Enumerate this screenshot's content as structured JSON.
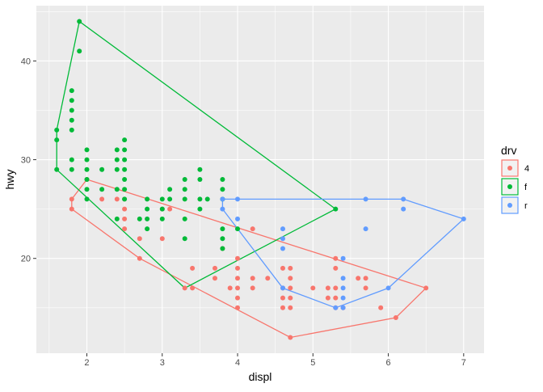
{
  "chart_data": {
    "type": "scatter",
    "title": "",
    "xlabel": "displ",
    "ylabel": "hwy",
    "xlim": [
      1.33,
      7.27
    ],
    "ylim": [
      10.4,
      45.6
    ],
    "x_ticks": [
      2,
      3,
      4,
      5,
      6,
      7
    ],
    "y_ticks": [
      20,
      30,
      40
    ],
    "grid": true,
    "legend": {
      "title": "drv",
      "position": "right",
      "entries": [
        {
          "label": "4",
          "color": "#F8766D"
        },
        {
          "label": "f",
          "color": "#00BA38"
        },
        {
          "label": "r",
          "color": "#619CFF"
        }
      ]
    },
    "colors": {
      "panel": "#EBEBEB",
      "grid": "#FFFFFF",
      "axis_text": "#4D4D4D"
    },
    "series": [
      {
        "name": "4",
        "color": "#F8766D",
        "hull": [
          [
            1.8,
            25
          ],
          [
            2.7,
            20
          ],
          [
            4.7,
            12
          ],
          [
            6.1,
            14
          ],
          [
            6.5,
            17
          ],
          [
            2.0,
            28
          ],
          [
            1.8,
            26
          ]
        ],
        "points": [
          [
            1.8,
            26
          ],
          [
            1.8,
            25
          ],
          [
            2.0,
            28
          ],
          [
            2.2,
            26
          ],
          [
            2.4,
            26
          ],
          [
            2.5,
            26
          ],
          [
            2.5,
            25
          ],
          [
            2.5,
            24
          ],
          [
            2.5,
            23
          ],
          [
            2.7,
            22
          ],
          [
            2.7,
            20
          ],
          [
            3.0,
            22
          ],
          [
            3.0,
            25
          ],
          [
            3.1,
            25
          ],
          [
            3.3,
            17
          ],
          [
            3.4,
            17
          ],
          [
            3.4,
            19
          ],
          [
            3.7,
            19
          ],
          [
            3.7,
            18
          ],
          [
            3.8,
            21
          ],
          [
            3.9,
            17
          ],
          [
            4.0,
            17
          ],
          [
            4.0,
            19
          ],
          [
            4.0,
            20
          ],
          [
            4.0,
            18
          ],
          [
            4.0,
            16
          ],
          [
            4.0,
            15
          ],
          [
            4.2,
            23
          ],
          [
            4.2,
            18
          ],
          [
            4.2,
            17
          ],
          [
            4.4,
            18
          ],
          [
            4.6,
            19
          ],
          [
            4.6,
            17
          ],
          [
            4.6,
            16
          ],
          [
            4.6,
            15
          ],
          [
            4.7,
            19
          ],
          [
            4.7,
            18
          ],
          [
            4.7,
            17
          ],
          [
            4.7,
            16
          ],
          [
            4.7,
            15
          ],
          [
            4.7,
            12
          ],
          [
            5.0,
            17
          ],
          [
            5.2,
            17
          ],
          [
            5.2,
            16
          ],
          [
            5.3,
            17
          ],
          [
            5.3,
            16
          ],
          [
            5.3,
            15
          ],
          [
            5.3,
            19
          ],
          [
            5.3,
            20
          ],
          [
            5.4,
            15
          ],
          [
            5.6,
            18
          ],
          [
            5.7,
            18
          ],
          [
            5.7,
            17
          ],
          [
            5.9,
            15
          ],
          [
            6.1,
            14
          ],
          [
            6.5,
            17
          ]
        ]
      },
      {
        "name": "f",
        "color": "#00BA38",
        "hull": [
          [
            1.6,
            29
          ],
          [
            3.3,
            17
          ],
          [
            5.3,
            25
          ],
          [
            1.9,
            44
          ],
          [
            1.6,
            33
          ],
          [
            1.6,
            32
          ]
        ],
        "points": [
          [
            1.6,
            33
          ],
          [
            1.6,
            32
          ],
          [
            1.6,
            29
          ],
          [
            1.8,
            37
          ],
          [
            1.8,
            36
          ],
          [
            1.8,
            35
          ],
          [
            1.8,
            34
          ],
          [
            1.8,
            33
          ],
          [
            1.8,
            30
          ],
          [
            1.8,
            29
          ],
          [
            1.9,
            44
          ],
          [
            1.9,
            41
          ],
          [
            2.0,
            31
          ],
          [
            2.0,
            30
          ],
          [
            2.0,
            29
          ],
          [
            2.0,
            28
          ],
          [
            2.0,
            27
          ],
          [
            2.0,
            26
          ],
          [
            2.2,
            29
          ],
          [
            2.2,
            27
          ],
          [
            2.4,
            31
          ],
          [
            2.4,
            30
          ],
          [
            2.4,
            29
          ],
          [
            2.4,
            27
          ],
          [
            2.4,
            24
          ],
          [
            2.5,
            32
          ],
          [
            2.5,
            31
          ],
          [
            2.5,
            30
          ],
          [
            2.5,
            29
          ],
          [
            2.5,
            28
          ],
          [
            2.5,
            27
          ],
          [
            2.5,
            26
          ],
          [
            2.7,
            24
          ],
          [
            2.8,
            26
          ],
          [
            2.8,
            24
          ],
          [
            2.8,
            23
          ],
          [
            2.8,
            25
          ],
          [
            3.0,
            26
          ],
          [
            3.0,
            24
          ],
          [
            3.0,
            25
          ],
          [
            3.1,
            26
          ],
          [
            3.1,
            27
          ],
          [
            3.3,
            28
          ],
          [
            3.3,
            27
          ],
          [
            3.3,
            26
          ],
          [
            3.3,
            24
          ],
          [
            3.3,
            22
          ],
          [
            3.5,
            29
          ],
          [
            3.5,
            28
          ],
          [
            3.5,
            26
          ],
          [
            3.5,
            25
          ],
          [
            3.6,
            26
          ],
          [
            3.8,
            28
          ],
          [
            3.8,
            27
          ],
          [
            3.8,
            26
          ],
          [
            3.8,
            23
          ],
          [
            3.8,
            22
          ],
          [
            3.8,
            21
          ],
          [
            4.0,
            23
          ],
          [
            5.3,
            25
          ]
        ]
      },
      {
        "name": "r",
        "color": "#619CFF",
        "hull": [
          [
            3.8,
            25
          ],
          [
            4.6,
            17
          ],
          [
            5.3,
            15
          ],
          [
            6.0,
            17
          ],
          [
            7.0,
            24
          ],
          [
            6.2,
            26
          ],
          [
            3.8,
            26
          ]
        ],
        "points": [
          [
            3.8,
            26
          ],
          [
            3.8,
            25
          ],
          [
            4.0,
            26
          ],
          [
            4.0,
            24
          ],
          [
            4.6,
            23
          ],
          [
            4.6,
            22
          ],
          [
            4.6,
            21
          ],
          [
            4.6,
            17
          ],
          [
            5.3,
            15
          ],
          [
            5.4,
            20
          ],
          [
            5.4,
            18
          ],
          [
            5.4,
            17
          ],
          [
            5.4,
            16
          ],
          [
            5.4,
            15
          ],
          [
            5.7,
            26
          ],
          [
            5.7,
            23
          ],
          [
            6.0,
            17
          ],
          [
            6.2,
            26
          ],
          [
            6.2,
            25
          ],
          [
            7.0,
            24
          ]
        ]
      }
    ]
  }
}
